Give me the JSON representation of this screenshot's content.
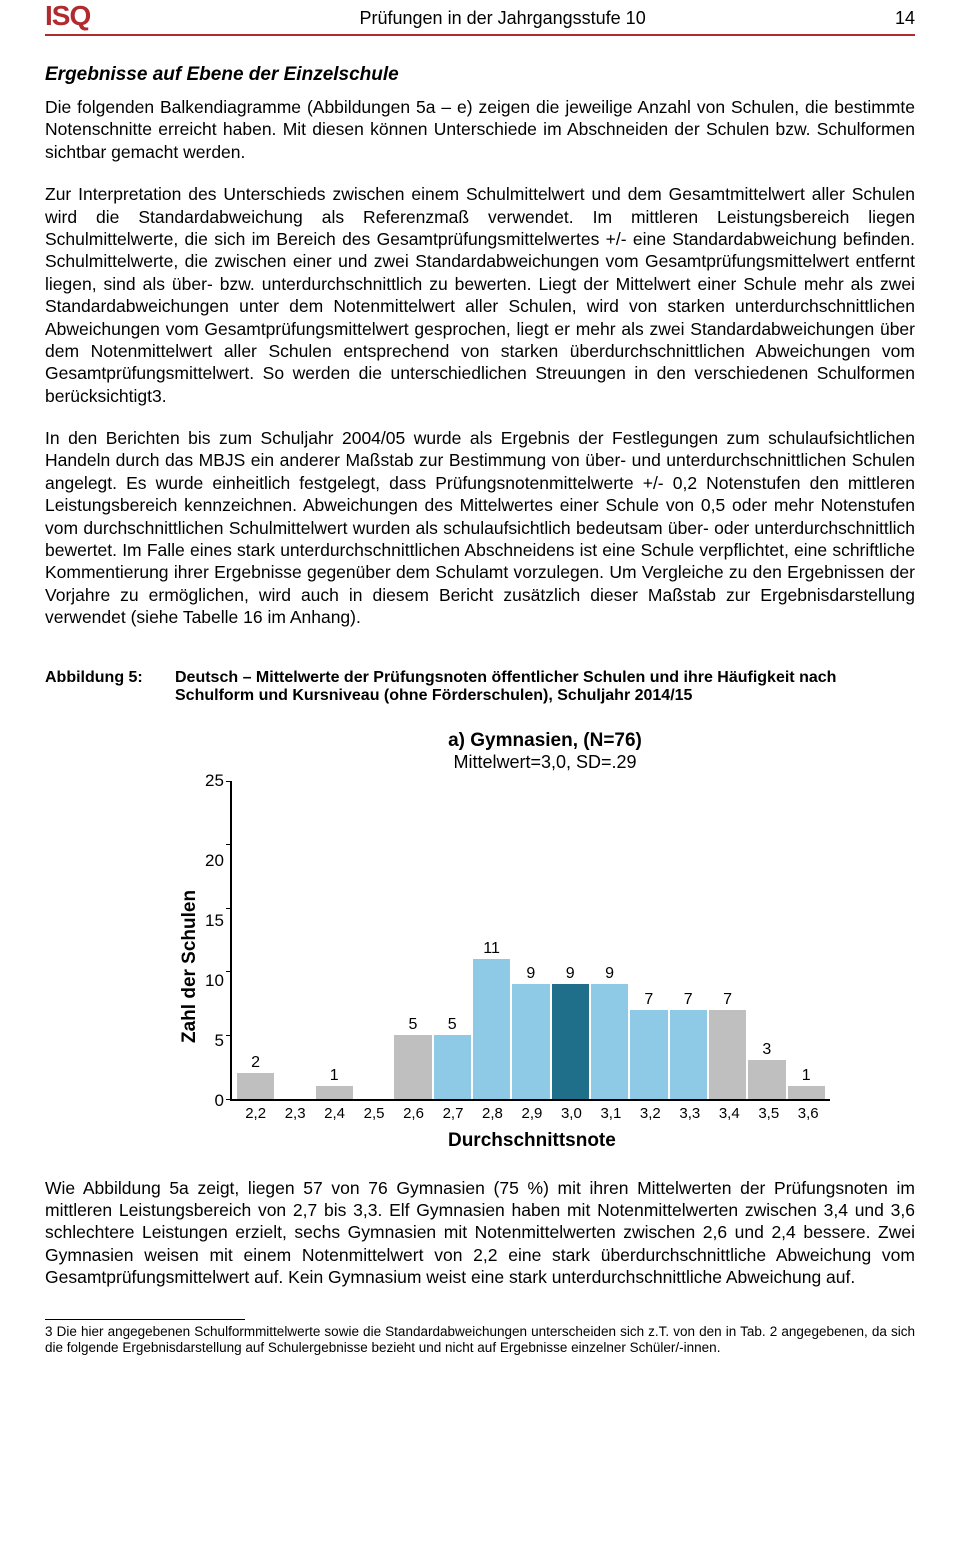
{
  "header": {
    "logo": "ISQ",
    "title": "Prüfungen in der Jahrgangsstufe 10",
    "page_number": "14"
  },
  "section_title": "Ergebnisse auf Ebene der Einzelschule",
  "paragraphs": {
    "p1": "Die folgenden Balkendiagramme (Abbildungen 5a – e) zeigen die jeweilige Anzahl von Schulen, die bestimmte Notenschnitte erreicht haben. Mit diesen können Unterschiede im Abschneiden der Schulen bzw. Schulformen sichtbar gemacht werden.",
    "p2": "Zur Interpretation des Unterschieds zwischen einem Schulmittelwert und dem Gesamtmittelwert aller Schulen wird die Standardabweichung als Referenzmaß verwendet. Im mittleren Leistungsbereich liegen Schulmittelwerte, die sich im Bereich des Gesamtprüfungsmittelwertes +/- eine Standardabweichung befinden. Schulmittelwerte, die zwischen einer und zwei Standardabweichungen vom Gesamtprüfungsmittelwert entfernt liegen, sind als über- bzw. unterdurchschnittlich zu bewerten. Liegt der Mittelwert einer Schule mehr als zwei Standardabweichungen unter dem Notenmittelwert aller Schulen, wird von starken unterdurchschnittlichen Abweichungen vom Gesamtprüfungsmittelwert gesprochen, liegt er mehr als zwei Standardabweichungen über dem Notenmittelwert aller Schulen entsprechend von starken überdurchschnittlichen Abweichungen vom Gesamtprüfungsmittelwert. So werden die unterschiedlichen Streuungen in den verschiedenen Schulformen berücksichtigt3.",
    "p3": "In den Berichten bis zum Schuljahr 2004/05 wurde als Ergebnis der Festlegungen zum schulaufsichtlichen Handeln durch das MBJS ein anderer Maßstab zur Bestimmung von über- und unterdurchschnittlichen Schulen angelegt. Es wurde einheitlich festgelegt, dass Prüfungsnotenmittelwerte +/- 0,2 Notenstufen den mittleren Leistungsbereich kennzeichnen. Abweichungen des Mittelwertes einer Schule von 0,5 oder mehr Notenstufen vom durchschnittlichen Schulmittelwert wurden als schulaufsichtlich bedeutsam über- oder unterdurchschnittlich bewertet. Im Falle eines stark unterdurchschnittlichen Abschneidens ist eine Schule verpflichtet, eine schriftliche Kommentierung ihrer Ergebnisse gegenüber dem Schulamt vorzulegen. Um Vergleiche zu den Ergebnissen der Vorjahre zu ermöglichen, wird auch in diesem Bericht zusätzlich dieser Maßstab zur Ergebnisdarstellung verwendet (siehe Tabelle 16 im Anhang).",
    "p4": "Wie Abbildung 5a zeigt, liegen 57 von 76 Gymnasien (75 %) mit ihren Mittelwerten der Prüfungsnoten im mittleren Leistungsbereich von 2,7 bis 3,3. Elf Gymnasien haben mit Notenmittelwerten zwischen 3,4 und 3,6 schlechtere Leistungen erzielt, sechs Gymnasien mit Notenmittelwerten zwischen 2,6 und 2,4 bessere. Zwei Gymnasien weisen mit einem Notenmittelwert von 2,2 eine stark überdurchschnittliche Abweichung vom Gesamtprüfungsmittelwert auf. Kein Gymnasium weist eine stark unterdurchschnittliche Abweichung auf."
  },
  "figure": {
    "label": "Abbildung 5:",
    "caption": "Deutsch – Mittelwerte der Prüfungsnoten öffentlicher Schulen und ihre Häufigkeit nach Schulform und Kursniveau (ohne Förderschulen), Schuljahr 2014/15"
  },
  "chart": {
    "type": "bar",
    "title": "a) Gymnasien, (N=76)",
    "subtitle": "Mittelwert=3,0, SD=.29",
    "ylabel": "Zahl der Schulen",
    "xlabel": "Durchschnittsnote",
    "ylim": [
      0,
      25
    ],
    "ytick_step": 5,
    "yticks": [
      "25",
      "20",
      "15",
      "10",
      "5",
      "0"
    ],
    "categories": [
      "2,2",
      "2,3",
      "2,4",
      "2,5",
      "2,6",
      "2,7",
      "2,8",
      "2,9",
      "3,0",
      "3,1",
      "3,2",
      "3,3",
      "3,4",
      "3,5",
      "3,6"
    ],
    "values": [
      2,
      0,
      1,
      0,
      5,
      5,
      11,
      9,
      9,
      9,
      7,
      7,
      7,
      3,
      1
    ],
    "show_zero": [
      false,
      false,
      false,
      false,
      false,
      false,
      false,
      false,
      false,
      false,
      false,
      false,
      false,
      false,
      false
    ],
    "bar_colors": [
      "#bfbfbf",
      "#bfbfbf",
      "#bfbfbf",
      "#bfbfbf",
      "#bfbfbf",
      "#8ecae6",
      "#8ecae6",
      "#8ecae6",
      "#1f6f8b",
      "#8ecae6",
      "#8ecae6",
      "#8ecae6",
      "#bfbfbf",
      "#bfbfbf",
      "#bfbfbf"
    ],
    "background_color": "#ffffff",
    "axis_color": "#000000",
    "title_fontsize": 19,
    "subtitle_fontsize": 18,
    "label_fontsize": 19,
    "tick_fontsize": 15,
    "value_fontsize": 16
  },
  "footnote": "3 Die hier angegebenen Schulformmittelwerte sowie die Standardabweichungen unterscheiden sich z.T. von den in Tab. 2 angegebenen, da sich die folgende Ergebnisdarstellung auf Schulergebnisse bezieht und nicht auf Ergebnisse einzelner Schüler/-innen."
}
